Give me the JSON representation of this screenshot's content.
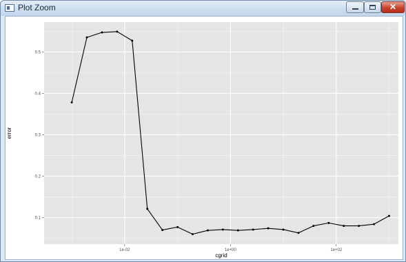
{
  "window": {
    "title": "Plot Zoom",
    "close_glyph": "✕",
    "icons": [
      "plot-window-icon",
      "minimize-icon",
      "maximize-icon",
      "close-icon"
    ]
  },
  "chart_data": {
    "type": "line",
    "markers": true,
    "xlabel": "cgrid",
    "ylabel": "error",
    "xscale": "log10",
    "xlim": [
      0.0003,
      1500
    ],
    "ylim": [
      0.036,
      0.572
    ],
    "xticks": [
      {
        "value": 0.01,
        "label": "1e-02"
      },
      {
        "value": 1,
        "label": "1e+00"
      },
      {
        "value": 100,
        "label": "1e+02"
      }
    ],
    "yticks": [
      {
        "value": 0.1,
        "label": "0.1"
      },
      {
        "value": 0.2,
        "label": "0.2"
      },
      {
        "value": 0.3,
        "label": "0.3"
      },
      {
        "value": 0.4,
        "label": "0.4"
      },
      {
        "value": 0.5,
        "label": "0.5"
      }
    ],
    "grid": true,
    "panel_background": "#e5e5e5",
    "grid_color": "#ffffff",
    "line_color": "#000000",
    "x": [
      0.001,
      0.0019307,
      0.0037276,
      0.0071969,
      0.013895,
      0.026827,
      0.051795,
      0.1,
      0.19307,
      0.37276,
      0.71969,
      1.3895,
      2.6827,
      5.1795,
      10,
      19.307,
      37.276,
      71.969,
      138.95,
      268.27,
      517.95,
      1000
    ],
    "y": [
      0.378,
      0.535,
      0.547,
      0.549,
      0.527,
      0.121,
      0.07,
      0.077,
      0.06,
      0.069,
      0.071,
      0.069,
      0.071,
      0.074,
      0.071,
      0.063,
      0.08,
      0.087,
      0.08,
      0.08,
      0.084,
      0.104
    ]
  },
  "colors": {
    "titlebar": "#cfdff0",
    "close_button": "#c8412c",
    "panel": "#e5e5e5"
  }
}
